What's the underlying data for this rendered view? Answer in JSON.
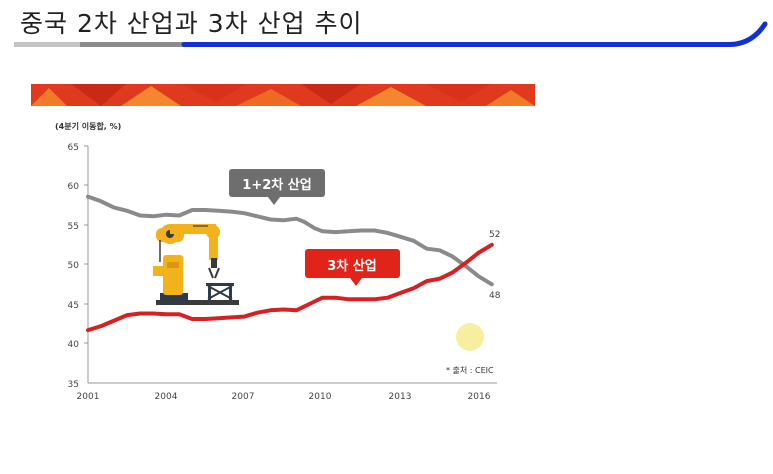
{
  "slide": {
    "title": "중국 2차 산업과 3차 산업 추이"
  },
  "colors": {
    "accent_blue": "#1330d0",
    "banner_red": "#e03a1e",
    "banner_orange": "#f07a2a",
    "line_industry": "#8a8a8a",
    "line_service": "#d82020",
    "robot_yellow": "#f2b21c"
  },
  "chart_data": {
    "type": "line",
    "ylabel": "(4분기 이동합, %)",
    "xlim": [
      2001,
      2016.7
    ],
    "ylim": [
      35,
      65
    ],
    "x_ticks": [
      "2001",
      "2004",
      "2007",
      "2010",
      "2013",
      "2016"
    ],
    "y_ticks": [
      "65",
      "60",
      "55",
      "50",
      "45",
      "40",
      "35"
    ],
    "source_note": "* 출처 : CEIC",
    "series": [
      {
        "name": "1+2차 산업",
        "color": "#8a8a8a",
        "end_label": "48",
        "points": [
          [
            2001,
            58.6
          ],
          [
            2001.5,
            58.0
          ],
          [
            2002,
            57.2
          ],
          [
            2002.5,
            56.8
          ],
          [
            2003,
            56.2
          ],
          [
            2003.5,
            56.1
          ],
          [
            2004,
            56.3
          ],
          [
            2004.5,
            56.2
          ],
          [
            2005,
            56.9
          ],
          [
            2005.5,
            56.9
          ],
          [
            2006,
            56.8
          ],
          [
            2006.5,
            56.7
          ],
          [
            2007,
            56.5
          ],
          [
            2007.5,
            56.1
          ],
          [
            2008,
            55.7
          ],
          [
            2008.5,
            55.6
          ],
          [
            2009,
            55.8
          ],
          [
            2009.3,
            55.4
          ],
          [
            2009.7,
            54.6
          ],
          [
            2010,
            54.2
          ],
          [
            2010.5,
            54.1
          ],
          [
            2011,
            54.2
          ],
          [
            2011.5,
            54.3
          ],
          [
            2012,
            54.3
          ],
          [
            2012.5,
            54.0
          ],
          [
            2013,
            53.5
          ],
          [
            2013.5,
            53.0
          ],
          [
            2014,
            52.0
          ],
          [
            2014.5,
            51.8
          ],
          [
            2015,
            51.0
          ],
          [
            2015.5,
            49.8
          ],
          [
            2016,
            48.5
          ],
          [
            2016.5,
            47.5
          ]
        ]
      },
      {
        "name": "3차 산업",
        "color": "#d82020",
        "end_label": "52",
        "points": [
          [
            2001,
            41.7
          ],
          [
            2001.5,
            42.2
          ],
          [
            2002,
            42.9
          ],
          [
            2002.5,
            43.6
          ],
          [
            2003,
            43.8
          ],
          [
            2003.5,
            43.8
          ],
          [
            2004,
            43.7
          ],
          [
            2004.5,
            43.7
          ],
          [
            2005,
            43.1
          ],
          [
            2005.5,
            43.1
          ],
          [
            2006,
            43.2
          ],
          [
            2006.5,
            43.3
          ],
          [
            2007,
            43.4
          ],
          [
            2007.5,
            43.9
          ],
          [
            2008,
            44.2
          ],
          [
            2008.5,
            44.3
          ],
          [
            2009,
            44.2
          ],
          [
            2009.5,
            45.0
          ],
          [
            2010,
            45.8
          ],
          [
            2010.5,
            45.8
          ],
          [
            2011,
            45.6
          ],
          [
            2011.5,
            45.6
          ],
          [
            2012,
            45.6
          ],
          [
            2012.5,
            45.8
          ],
          [
            2013,
            46.4
          ],
          [
            2013.5,
            47.0
          ],
          [
            2014,
            47.9
          ],
          [
            2014.5,
            48.2
          ],
          [
            2015,
            49.0
          ],
          [
            2015.5,
            50.2
          ],
          [
            2016,
            51.5
          ],
          [
            2016.5,
            52.5
          ]
        ]
      }
    ],
    "callouts": [
      {
        "text": "1+2차 산업",
        "bg": "#6e6e6e"
      },
      {
        "text": "3차 산업",
        "bg": "#e12419"
      }
    ]
  }
}
